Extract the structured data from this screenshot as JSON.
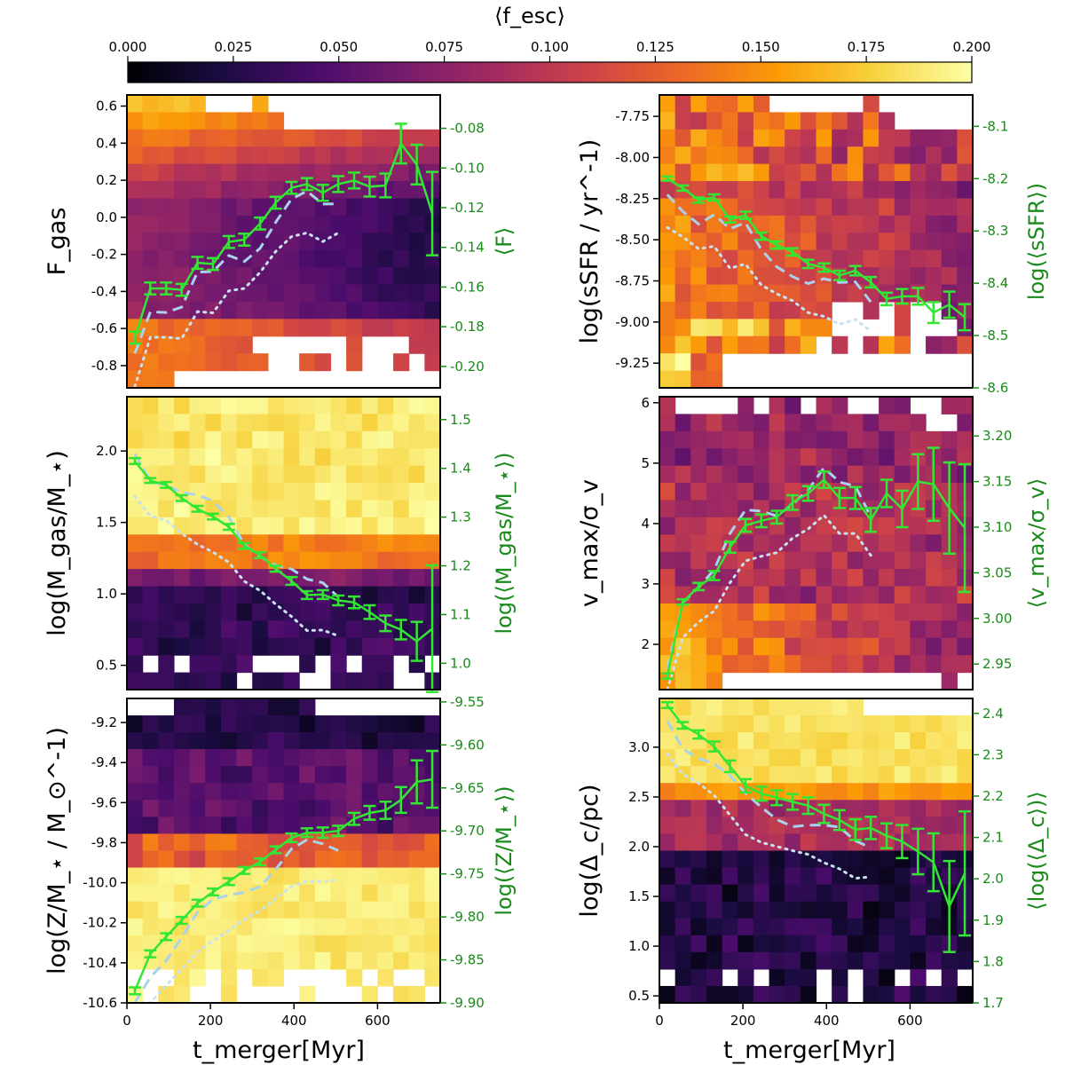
{
  "colorbar": {
    "label": "⟨f_esc⟩",
    "min": 0.0,
    "max": 0.2,
    "ticks": [
      "0.000",
      "0.025",
      "0.050",
      "0.075",
      "0.100",
      "0.125",
      "0.150",
      "0.175",
      "0.200"
    ],
    "colors": [
      "#000004",
      "#1b0c41",
      "#4a0c6b",
      "#781c6d",
      "#a52c60",
      "#cf4446",
      "#ed6925",
      "#fb9b06",
      "#f7d13d",
      "#fcffa4"
    ]
  },
  "colors": {
    "median_line": "#33e633",
    "right_axis": "#1a8a1a",
    "contour_inner": "#a9d3ec",
    "contour_outer": "#c8e2f2",
    "empty": "#ffffff"
  },
  "shared_x": {
    "label": "t_merger[Myr]",
    "ticks": [
      "0",
      "200",
      "400",
      "600"
    ],
    "lim": [
      0,
      750
    ]
  },
  "chart_data": [
    {
      "type": "heatmap",
      "panel": "left-top",
      "ylabel": "F_gas",
      "ylim": [
        -0.92,
        0.66
      ],
      "yticks": [
        "-0.8",
        "-0.6",
        "-0.4",
        "-0.2",
        "0.0",
        "0.2",
        "0.4",
        "0.6"
      ],
      "y2label": "⟨F⟩",
      "y2lim": [
        -0.2108,
        -0.0632
      ],
      "y2ticks": [
        "-0.20",
        "-0.18",
        "-0.16",
        "-0.14",
        "-0.12",
        "-0.10",
        "-0.08"
      ],
      "bands": [
        [
          -0.9,
          0.6,
          "hot-edges"
        ]
      ],
      "median": {
        "x": [
          19,
          56,
          94,
          131,
          169,
          206,
          244,
          281,
          319,
          356,
          394,
          431,
          469,
          506,
          544,
          581,
          619,
          656,
          694,
          731
        ],
        "y": [
          -0.1855,
          -0.1607,
          -0.1607,
          -0.1614,
          -0.1478,
          -0.1484,
          -0.1373,
          -0.1361,
          -0.128,
          -0.1175,
          -0.11,
          -0.1081,
          -0.1125,
          -0.1081,
          -0.1063,
          -0.1094,
          -0.1088,
          -0.0877,
          -0.0983,
          -0.123
        ],
        "err": [
          0.003,
          0.003,
          0.003,
          0.003,
          0.003,
          0.003,
          0.003,
          0.003,
          0.003,
          0.003,
          0.003,
          0.003,
          0.004,
          0.004,
          0.004,
          0.005,
          0.006,
          0.01,
          0.01,
          0.021
        ]
      }
    },
    {
      "type": "heatmap",
      "panel": "left-middle",
      "ylabel": "log(M_gas/M_⋆)",
      "ylim": [
        0.33,
        2.38
      ],
      "yticks": [
        "0.5",
        "1.0",
        "1.5",
        "2.0"
      ],
      "y2label": "log(⟨M_gas/M_⋆⟩)",
      "y2lim": [
        0.946,
        1.547
      ],
      "y2ticks": [
        "1.0",
        "1.1",
        "1.2",
        "1.3",
        "1.4",
        "1.5"
      ],
      "median": {
        "x": [
          19,
          56,
          94,
          131,
          169,
          206,
          244,
          281,
          319,
          356,
          394,
          431,
          469,
          506,
          544,
          581,
          619,
          656,
          694,
          731
        ],
        "y": [
          1.415,
          1.375,
          1.366,
          1.339,
          1.317,
          1.301,
          1.28,
          1.241,
          1.222,
          1.194,
          1.169,
          1.14,
          1.141,
          1.129,
          1.125,
          1.105,
          1.082,
          1.069,
          1.045,
          1.071
        ],
        "err": [
          0.006,
          0.005,
          0.006,
          0.006,
          0.006,
          0.006,
          0.006,
          0.006,
          0.006,
          0.006,
          0.008,
          0.008,
          0.009,
          0.01,
          0.012,
          0.014,
          0.016,
          0.02,
          0.04,
          0.13
        ]
      }
    },
    {
      "type": "heatmap",
      "panel": "left-bottom",
      "ylabel": "log(Z/M_⋆ / M_⊙^-1)",
      "ylim": [
        -10.6,
        -9.08
      ],
      "yticks": [
        "-10.6",
        "-10.4",
        "-10.2",
        "-10.0",
        "-9.8",
        "-9.6",
        "-9.4",
        "-9.2"
      ],
      "y2label": "log(⟨Z/M_⋆⟩)",
      "y2lim": [
        -9.9,
        -9.546
      ],
      "y2ticks": [
        "-9.90",
        "-9.85",
        "-9.80",
        "-9.75",
        "-9.70",
        "-9.65",
        "-9.60",
        "-9.55"
      ],
      "median": {
        "x": [
          19,
          56,
          94,
          131,
          169,
          206,
          244,
          281,
          319,
          356,
          394,
          431,
          469,
          506,
          544,
          581,
          619,
          656,
          694,
          731
        ],
        "y": [
          -9.886,
          -9.843,
          -9.823,
          -9.804,
          -9.784,
          -9.771,
          -9.759,
          -9.746,
          -9.736,
          -9.722,
          -9.708,
          -9.702,
          -9.702,
          -9.7,
          -9.686,
          -9.679,
          -9.676,
          -9.664,
          -9.643,
          -9.64
        ],
        "err": [
          0.004,
          0.004,
          0.004,
          0.004,
          0.004,
          0.004,
          0.004,
          0.004,
          0.004,
          0.004,
          0.005,
          0.005,
          0.006,
          0.006,
          0.007,
          0.008,
          0.01,
          0.015,
          0.025,
          0.033
        ]
      }
    },
    {
      "type": "heatmap",
      "panel": "right-top",
      "ylabel": "log(sSFR / yr^-1)",
      "ylim": [
        -9.4,
        -7.62
      ],
      "yticks": [
        "-9.25",
        "-9.00",
        "-8.75",
        "-8.50",
        "-8.25",
        "-8.00",
        "-7.75"
      ],
      "y2label": "log(⟨sSFR⟩)",
      "y2lim": [
        -8.6,
        -8.04
      ],
      "y2ticks": [
        "-8.6",
        "-8.5",
        "-8.4",
        "-8.3",
        "-8.2",
        "-8.1"
      ],
      "median": {
        "x": [
          19,
          56,
          94,
          131,
          169,
          206,
          244,
          281,
          319,
          356,
          394,
          431,
          469,
          506,
          544,
          581,
          619,
          656,
          694,
          731
        ],
        "y": [
          -8.2,
          -8.218,
          -8.241,
          -8.236,
          -8.278,
          -8.27,
          -8.31,
          -8.327,
          -8.34,
          -8.363,
          -8.37,
          -8.385,
          -8.376,
          -8.398,
          -8.43,
          -8.425,
          -8.425,
          -8.456,
          -8.441,
          -8.465
        ],
        "err": [
          0.004,
          0.005,
          0.005,
          0.006,
          0.006,
          0.007,
          0.007,
          0.007,
          0.007,
          0.008,
          0.008,
          0.009,
          0.009,
          0.01,
          0.012,
          0.014,
          0.016,
          0.02,
          0.025,
          0.025
        ]
      }
    },
    {
      "type": "heatmap",
      "panel": "right-middle",
      "ylabel": "v_max/σ_v",
      "ylim": [
        1.25,
        6.1
      ],
      "yticks": [
        "2",
        "3",
        "4",
        "5",
        "6"
      ],
      "y2label": "⟨v_max/σ_v⟩",
      "y2lim": [
        2.922,
        3.243
      ],
      "y2ticks": [
        "2.95",
        "3.00",
        "3.05",
        "3.10",
        "3.15",
        "3.20"
      ],
      "median": {
        "x": [
          19,
          56,
          94,
          131,
          169,
          206,
          244,
          281,
          319,
          356,
          394,
          431,
          469,
          506,
          544,
          581,
          619,
          656,
          694,
          731
        ],
        "y": [
          2.937,
          3.018,
          3.035,
          3.047,
          3.078,
          3.102,
          3.107,
          3.111,
          3.127,
          3.137,
          3.152,
          3.132,
          3.132,
          3.108,
          3.137,
          3.12,
          3.15,
          3.147,
          3.121,
          3.099
        ],
        "err": [
          0.003,
          0.003,
          0.004,
          0.005,
          0.006,
          0.007,
          0.007,
          0.007,
          0.008,
          0.008,
          0.009,
          0.011,
          0.012,
          0.013,
          0.015,
          0.02,
          0.03,
          0.04,
          0.05,
          0.07
        ]
      }
    },
    {
      "type": "heatmap",
      "panel": "right-bottom",
      "ylabel": "log(Δ_c/pc)",
      "ylim": [
        0.43,
        3.49
      ],
      "yticks": [
        "0.5",
        "1.0",
        "1.5",
        "2.0",
        "2.5",
        "3.0"
      ],
      "y2label": "⟨log(⟨Δ_c⟩)⟩",
      "y2lim": [
        1.7,
        2.436
      ],
      "y2ticks": [
        "1.7",
        "1.8",
        "1.9",
        "2.0",
        "2.1",
        "2.2",
        "2.3",
        "2.4"
      ],
      "median": {
        "x": [
          19,
          56,
          94,
          131,
          169,
          206,
          244,
          281,
          319,
          356,
          394,
          431,
          469,
          506,
          544,
          581,
          619,
          656,
          694,
          731
        ],
        "y": [
          2.42,
          2.371,
          2.349,
          2.32,
          2.272,
          2.225,
          2.206,
          2.196,
          2.186,
          2.177,
          2.157,
          2.142,
          2.119,
          2.123,
          2.104,
          2.09,
          2.066,
          2.04,
          1.933,
          2.013
        ],
        "err": [
          0.007,
          0.008,
          0.01,
          0.012,
          0.014,
          0.016,
          0.017,
          0.018,
          0.019,
          0.02,
          0.022,
          0.024,
          0.025,
          0.027,
          0.03,
          0.04,
          0.055,
          0.07,
          0.11,
          0.15
        ]
      }
    }
  ]
}
